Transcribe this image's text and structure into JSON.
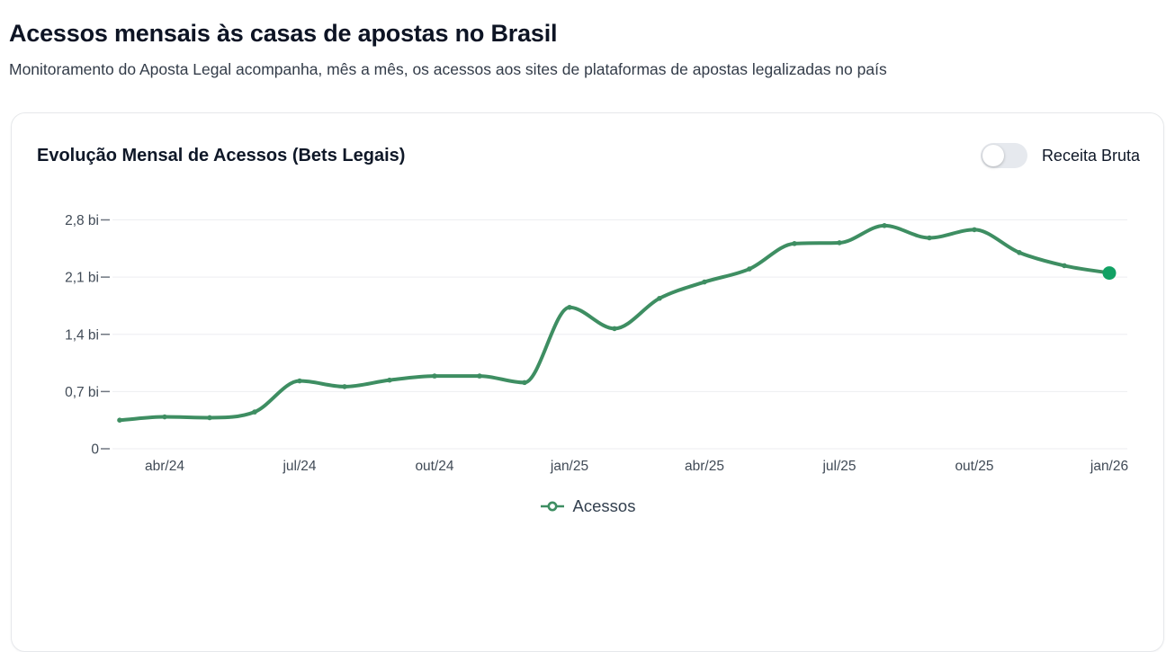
{
  "page": {
    "title": "Acessos mensais às casas de apostas no Brasil",
    "subtitle": "Monitoramento do Aposta Legal acompanha, mês a mês, os acessos aos sites de plataformas de apostas legalizadas no país"
  },
  "card": {
    "title": "Evolução Mensal de Acessos (Bets Legais)",
    "toggle": {
      "label": "Receita Bruta",
      "state": "off"
    }
  },
  "chart_data": {
    "type": "line",
    "title": "Evolução Mensal de Acessos (Bets Legais)",
    "unit": "bi (bilhões de acessos)",
    "x": [
      "mar/24",
      "abr/24",
      "mai/24",
      "jun/24",
      "jul/24",
      "ago/24",
      "set/24",
      "out/24",
      "nov/24",
      "dez/24",
      "jan/25",
      "fev/25",
      "mar/25",
      "abr/25",
      "mai/25",
      "jun/25",
      "jul/25",
      "ago/25",
      "set/25",
      "out/25",
      "nov/25",
      "dez/25",
      "jan/26"
    ],
    "series": [
      {
        "name": "Acessos",
        "values": [
          0.35,
          0.39,
          0.38,
          0.45,
          0.83,
          0.76,
          0.84,
          0.89,
          0.89,
          0.81,
          1.73,
          1.47,
          1.84,
          2.04,
          2.2,
          2.51,
          2.52,
          2.73,
          2.58,
          2.68,
          2.4,
          2.24,
          2.15
        ]
      }
    ],
    "x_tick_labels": [
      "abr/24",
      "jul/24",
      "out/24",
      "jan/25",
      "abr/25",
      "jul/25",
      "out/25",
      "jan/26"
    ],
    "y_ticks": [
      0,
      0.7,
      1.4,
      2.1,
      2.8
    ],
    "y_tick_labels": [
      "0",
      "0,7 bi",
      "1,4 bi",
      "2,1 bi",
      "2,8 bi"
    ],
    "ylim": [
      0,
      2.8
    ],
    "grid": true,
    "legend_position": "bottom",
    "colors": {
      "line": "#3e8e62",
      "end_dot": "#12a164",
      "grid": "#edeef1",
      "tick": "#6f7680",
      "axis_text": "#404a56"
    }
  }
}
